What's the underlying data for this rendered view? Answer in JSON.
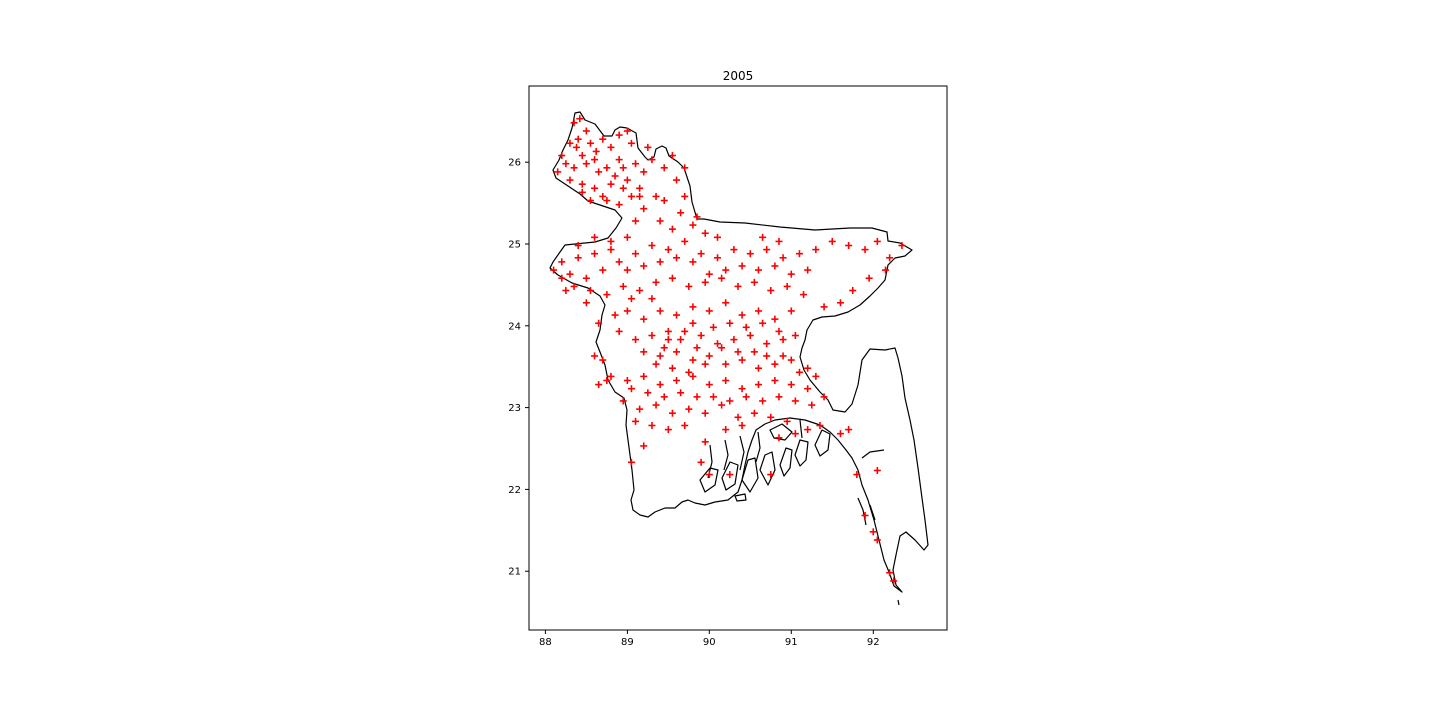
{
  "chart_data": {
    "type": "scatter",
    "title": "2005",
    "xlabel": "",
    "ylabel": "",
    "xlim": [
      87.8,
      92.9
    ],
    "ylim": [
      20.3,
      26.95
    ],
    "x_ticks": [
      "88",
      "89",
      "90",
      "91",
      "92"
    ],
    "y_ticks": [
      "21",
      "22",
      "23",
      "24",
      "25",
      "26"
    ],
    "grid": false,
    "marker": "+",
    "marker_color": "#ff0000",
    "boundary_color": "#000000",
    "basemap": "Bangladesh outline",
    "points": [
      [
        88.35,
        26.5
      ],
      [
        88.42,
        26.55
      ],
      [
        88.5,
        26.4
      ],
      [
        88.38,
        26.2
      ],
      [
        88.45,
        26.1
      ],
      [
        88.55,
        26.25
      ],
      [
        88.62,
        26.15
      ],
      [
        88.7,
        26.3
      ],
      [
        88.8,
        26.2
      ],
      [
        88.9,
        26.35
      ],
      [
        89.0,
        26.4
      ],
      [
        89.05,
        26.25
      ],
      [
        88.25,
        26.0
      ],
      [
        88.35,
        25.95
      ],
      [
        88.5,
        26.0
      ],
      [
        88.65,
        25.9
      ],
      [
        88.75,
        25.95
      ],
      [
        88.9,
        26.05
      ],
      [
        89.1,
        26.0
      ],
      [
        89.2,
        25.9
      ],
      [
        88.15,
        25.9
      ],
      [
        88.3,
        25.8
      ],
      [
        88.45,
        25.75
      ],
      [
        88.6,
        25.7
      ],
      [
        88.8,
        25.75
      ],
      [
        89.0,
        25.8
      ],
      [
        89.15,
        25.7
      ],
      [
        88.55,
        25.55
      ],
      [
        88.7,
        25.6
      ],
      [
        88.9,
        25.5
      ],
      [
        89.05,
        25.6
      ],
      [
        88.4,
        26.3
      ],
      [
        88.6,
        26.05
      ],
      [
        88.85,
        25.85
      ],
      [
        89.3,
        26.05
      ],
      [
        89.45,
        25.95
      ],
      [
        89.6,
        25.8
      ],
      [
        89.7,
        25.95
      ],
      [
        89.55,
        26.1
      ],
      [
        89.35,
        25.6
      ],
      [
        89.2,
        25.45
      ],
      [
        89.4,
        25.3
      ],
      [
        89.55,
        25.2
      ],
      [
        89.8,
        25.25
      ],
      [
        89.7,
        25.6
      ],
      [
        88.2,
        26.1
      ],
      [
        88.3,
        26.25
      ],
      [
        88.45,
        25.65
      ],
      [
        88.95,
        25.95
      ],
      [
        89.25,
        26.2
      ],
      [
        89.1,
        25.3
      ],
      [
        89.0,
        25.1
      ],
      [
        88.8,
        25.05
      ],
      [
        88.6,
        25.1
      ],
      [
        88.4,
        25.0
      ],
      [
        88.2,
        24.8
      ],
      [
        88.1,
        24.7
      ],
      [
        88.3,
        24.65
      ],
      [
        88.5,
        24.6
      ],
      [
        88.7,
        24.7
      ],
      [
        88.9,
        24.8
      ],
      [
        89.1,
        24.9
      ],
      [
        89.3,
        25.0
      ],
      [
        89.5,
        24.95
      ],
      [
        89.7,
        25.05
      ],
      [
        89.9,
        24.9
      ],
      [
        90.1,
        24.85
      ],
      [
        90.3,
        24.95
      ],
      [
        90.5,
        24.9
      ],
      [
        90.7,
        24.95
      ],
      [
        90.9,
        24.85
      ],
      [
        91.1,
        24.9
      ],
      [
        91.3,
        24.95
      ],
      [
        91.5,
        25.05
      ],
      [
        91.7,
        25.0
      ],
      [
        91.9,
        24.95
      ],
      [
        92.05,
        25.05
      ],
      [
        92.2,
        24.85
      ],
      [
        92.35,
        25.0
      ],
      [
        92.15,
        24.7
      ],
      [
        91.95,
        24.6
      ],
      [
        91.75,
        24.45
      ],
      [
        91.6,
        24.3
      ],
      [
        91.4,
        24.25
      ],
      [
        88.35,
        24.5
      ],
      [
        88.55,
        24.45
      ],
      [
        88.75,
        24.4
      ],
      [
        88.95,
        24.5
      ],
      [
        89.15,
        24.45
      ],
      [
        89.35,
        24.55
      ],
      [
        89.55,
        24.6
      ],
      [
        89.75,
        24.5
      ],
      [
        89.95,
        24.55
      ],
      [
        90.15,
        24.6
      ],
      [
        90.35,
        24.5
      ],
      [
        90.55,
        24.55
      ],
      [
        90.75,
        24.45
      ],
      [
        90.95,
        24.5
      ],
      [
        91.15,
        24.4
      ],
      [
        89.0,
        24.2
      ],
      [
        89.2,
        24.1
      ],
      [
        89.4,
        24.2
      ],
      [
        89.6,
        24.15
      ],
      [
        89.8,
        24.25
      ],
      [
        90.0,
        24.2
      ],
      [
        90.2,
        24.3
      ],
      [
        90.4,
        24.15
      ],
      [
        90.6,
        24.2
      ],
      [
        90.8,
        24.1
      ],
      [
        91.0,
        24.2
      ],
      [
        88.9,
        23.95
      ],
      [
        89.1,
        23.85
      ],
      [
        89.3,
        23.9
      ],
      [
        89.5,
        23.85
      ],
      [
        89.7,
        23.95
      ],
      [
        89.9,
        23.9
      ],
      [
        90.1,
        23.8
      ],
      [
        90.3,
        23.85
      ],
      [
        90.5,
        23.9
      ],
      [
        90.7,
        23.8
      ],
      [
        90.9,
        23.85
      ],
      [
        89.2,
        23.7
      ],
      [
        89.4,
        23.65
      ],
      [
        89.6,
        23.7
      ],
      [
        89.8,
        23.6
      ],
      [
        90.0,
        23.65
      ],
      [
        90.2,
        23.55
      ],
      [
        90.4,
        23.6
      ],
      [
        90.6,
        23.5
      ],
      [
        90.8,
        23.55
      ],
      [
        91.0,
        23.6
      ],
      [
        91.2,
        23.5
      ],
      [
        88.7,
        23.6
      ],
      [
        88.8,
        23.4
      ],
      [
        89.0,
        23.35
      ],
      [
        89.2,
        23.4
      ],
      [
        89.4,
        23.3
      ],
      [
        89.6,
        23.35
      ],
      [
        89.8,
        23.4
      ],
      [
        90.0,
        23.3
      ],
      [
        90.2,
        23.35
      ],
      [
        90.4,
        23.25
      ],
      [
        90.6,
        23.3
      ],
      [
        90.8,
        23.35
      ],
      [
        91.0,
        23.3
      ],
      [
        91.2,
        23.25
      ],
      [
        91.4,
        23.15
      ],
      [
        88.95,
        23.1
      ],
      [
        89.15,
        23.0
      ],
      [
        89.35,
        23.05
      ],
      [
        89.55,
        22.95
      ],
      [
        89.75,
        23.0
      ],
      [
        89.95,
        22.95
      ],
      [
        90.15,
        23.05
      ],
      [
        90.35,
        22.9
      ],
      [
        90.55,
        22.95
      ],
      [
        90.75,
        22.9
      ],
      [
        90.95,
        22.85
      ],
      [
        89.1,
        22.85
      ],
      [
        89.3,
        22.8
      ],
      [
        89.5,
        22.75
      ],
      [
        89.7,
        22.8
      ],
      [
        90.2,
        22.75
      ],
      [
        90.4,
        22.8
      ],
      [
        89.2,
        22.55
      ],
      [
        89.05,
        22.35
      ],
      [
        89.95,
        22.6
      ],
      [
        89.9,
        22.35
      ],
      [
        90.0,
        22.2
      ],
      [
        90.25,
        22.2
      ],
      [
        90.75,
        22.2
      ],
      [
        90.85,
        22.65
      ],
      [
        91.05,
        22.7
      ],
      [
        91.2,
        22.75
      ],
      [
        91.35,
        22.8
      ],
      [
        91.6,
        22.7
      ],
      [
        91.7,
        22.75
      ],
      [
        92.05,
        22.25
      ],
      [
        91.8,
        22.2
      ],
      [
        92.0,
        21.5
      ],
      [
        92.05,
        21.4
      ],
      [
        92.2,
        21.0
      ],
      [
        92.25,
        20.9
      ],
      [
        91.9,
        21.7
      ],
      [
        88.6,
        23.65
      ],
      [
        88.75,
        23.35
      ],
      [
        88.65,
        23.3
      ],
      [
        89.35,
        23.55
      ],
      [
        89.45,
        23.75
      ],
      [
        89.55,
        23.5
      ],
      [
        89.65,
        23.85
      ],
      [
        89.85,
        23.75
      ],
      [
        89.75,
        23.45
      ],
      [
        89.5,
        23.95
      ],
      [
        89.3,
        24.35
      ],
      [
        89.05,
        24.35
      ],
      [
        88.85,
        24.15
      ],
      [
        88.65,
        24.05
      ],
      [
        88.5,
        24.3
      ],
      [
        88.25,
        24.45
      ],
      [
        88.2,
        24.6
      ],
      [
        88.4,
        24.85
      ],
      [
        88.6,
        24.9
      ],
      [
        88.8,
        24.95
      ],
      [
        89.0,
        24.7
      ],
      [
        89.2,
        24.75
      ],
      [
        89.4,
        24.8
      ],
      [
        89.6,
        24.85
      ],
      [
        89.8,
        24.8
      ],
      [
        90.0,
        24.65
      ],
      [
        90.2,
        24.7
      ],
      [
        90.4,
        24.75
      ],
      [
        90.6,
        24.7
      ],
      [
        90.8,
        24.75
      ],
      [
        91.0,
        24.65
      ],
      [
        91.2,
        24.7
      ],
      [
        90.65,
        25.1
      ],
      [
        90.85,
        25.05
      ],
      [
        90.1,
        25.1
      ],
      [
        89.95,
        25.15
      ],
      [
        89.85,
        25.35
      ],
      [
        89.65,
        25.4
      ],
      [
        89.45,
        25.55
      ],
      [
        89.15,
        25.6
      ],
      [
        88.95,
        25.7
      ],
      [
        88.75,
        25.55
      ],
      [
        89.8,
        24.05
      ],
      [
        90.05,
        24.0
      ],
      [
        90.25,
        24.05
      ],
      [
        90.45,
        24.0
      ],
      [
        90.65,
        24.05
      ],
      [
        90.85,
        23.95
      ],
      [
        91.05,
        23.9
      ],
      [
        90.55,
        23.7
      ],
      [
        90.35,
        23.7
      ],
      [
        90.15,
        23.75
      ],
      [
        89.95,
        23.55
      ],
      [
        90.7,
        23.65
      ],
      [
        90.9,
        23.65
      ],
      [
        91.1,
        23.45
      ],
      [
        91.3,
        23.4
      ],
      [
        90.05,
        23.15
      ],
      [
        90.25,
        23.1
      ],
      [
        90.45,
        23.15
      ],
      [
        90.65,
        23.1
      ],
      [
        90.85,
        23.15
      ],
      [
        91.05,
        23.1
      ],
      [
        91.25,
        23.05
      ],
      [
        89.85,
        23.15
      ],
      [
        89.65,
        23.2
      ],
      [
        89.45,
        23.15
      ],
      [
        89.25,
        23.2
      ],
      [
        89.05,
        23.25
      ]
    ]
  }
}
